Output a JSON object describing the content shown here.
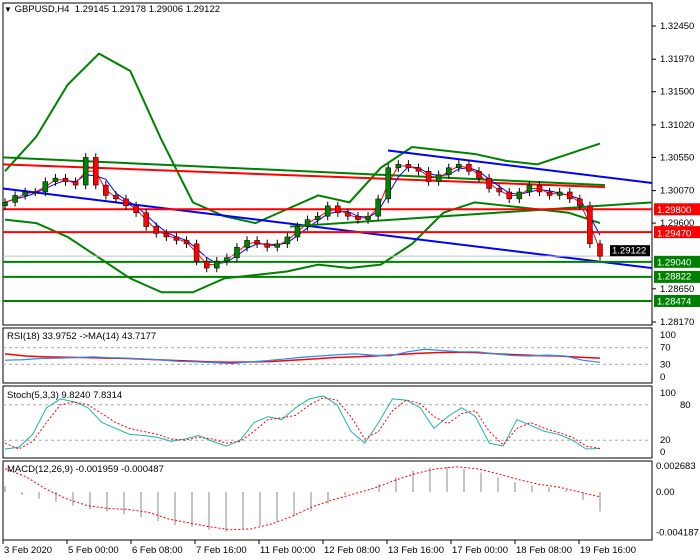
{
  "header": {
    "symbol": "GBPUSD,H4",
    "ohlc": "1.29145 1.29178 1.29006 1.29122"
  },
  "colors": {
    "bull": "#008000",
    "bear": "#ff0000",
    "trendline": "#0000ff",
    "support": "#008000",
    "resistance": "#ff0000",
    "rsi": "#1e90ff",
    "stoch": "#20b2aa"
  },
  "chart_data": [
    {
      "type": "candlestick",
      "title": "GBPUSD,H4",
      "price_ticks": [
        "1.32450",
        "1.31970",
        "1.31500",
        "1.31020",
        "1.30550",
        "1.30070",
        "1.29600",
        "1.28650",
        "1.28170"
      ],
      "ylim": [
        1.2817,
        1.3245
      ],
      "last_price": "1.29122",
      "time_ticks": [
        "3 Feb 2020",
        "5 Feb 00:00",
        "6 Feb 08:00",
        "7 Feb 16:00",
        "11 Feb 00:00",
        "12 Feb 08:00",
        "13 Feb 16:00",
        "17 Feb 00:00",
        "18 Feb 08:00",
        "19 Feb 16:00"
      ],
      "closes": [
        1.299,
        1.3,
        1.3005,
        1.3005,
        1.302,
        1.3025,
        1.302,
        1.3015,
        1.3055,
        1.3015,
        1.3,
        1.2995,
        1.2985,
        1.2975,
        1.2955,
        1.2945,
        1.294,
        1.2935,
        1.293,
        1.2905,
        1.2895,
        1.2905,
        1.291,
        1.2925,
        1.2935,
        1.293,
        1.2925,
        1.293,
        1.294,
        1.2955,
        1.2965,
        1.297,
        1.2985,
        1.2975,
        1.297,
        1.2965,
        1.297,
        1.2995,
        1.304,
        1.3045,
        1.304,
        1.3035,
        1.302,
        1.303,
        1.304,
        1.3045,
        1.3035,
        1.3025,
        1.301,
        1.3005,
        1.2995,
        1.3005,
        1.3015,
        1.3005,
        1.3,
        1.3005,
        1.2995,
        1.2985,
        1.293,
        1.29122
      ],
      "bollinger_upper": [
        1.3035,
        1.3085,
        1.316,
        1.3205,
        1.318,
        1.308,
        1.299,
        1.297,
        1.296,
        1.298,
        1.3,
        1.299,
        1.304,
        1.307,
        1.3065,
        1.306,
        1.305,
        1.3045,
        1.306,
        1.3075
      ],
      "bollinger_lower": [
        1.2965,
        1.296,
        1.294,
        1.291,
        1.288,
        1.286,
        1.286,
        1.288,
        1.2885,
        1.289,
        1.29,
        1.2895,
        1.29,
        1.293,
        1.2975,
        1.299,
        1.2985,
        1.298,
        1.2975,
        1.296
      ],
      "long_ma_red": [
        1.3045,
        1.3012
      ],
      "long_ma_green": [
        1.3055,
        1.3015
      ],
      "levels": [
        {
          "price": "1.29800",
          "kind": "resistance"
        },
        {
          "price": "1.29470",
          "kind": "resistance"
        },
        {
          "price": "1.29040",
          "kind": "support"
        },
        {
          "price": "1.28822",
          "kind": "support"
        },
        {
          "price": "1.28474",
          "kind": "support"
        }
      ]
    },
    {
      "type": "line",
      "title": "RSI(18) 33.9752  ->MA(14) 43.7177",
      "ticks": [
        "100",
        "70",
        "30",
        "0"
      ],
      "ylim": [
        0,
        100
      ],
      "rsi": [
        40,
        41,
        44,
        45,
        46,
        48,
        46,
        45,
        43,
        40,
        37,
        36,
        34,
        32,
        36,
        39,
        43,
        47,
        50,
        53,
        55,
        52,
        50,
        60,
        66,
        63,
        60,
        60,
        55,
        51,
        50,
        52,
        50,
        40,
        35
      ],
      "ma": [
        55,
        50,
        48,
        47,
        46,
        45,
        44,
        42,
        40,
        38,
        36,
        35,
        36,
        37,
        40,
        43,
        46,
        48,
        50,
        53,
        56,
        58,
        59,
        58,
        55,
        53,
        51,
        50,
        47,
        45
      ]
    },
    {
      "type": "line",
      "title": "Stoch(5,3,3) 9.8240 7.8314",
      "ticks": [
        "100",
        "80",
        "20",
        "0"
      ],
      "ylim": [
        0,
        100
      ],
      "main": [
        5,
        8,
        30,
        75,
        90,
        85,
        75,
        50,
        40,
        30,
        28,
        25,
        18,
        22,
        28,
        18,
        10,
        20,
        50,
        60,
        55,
        75,
        90,
        95,
        80,
        35,
        15,
        50,
        90,
        88,
        75,
        40,
        60,
        75,
        60,
        15,
        10,
        55,
        45,
        35,
        30,
        20,
        5,
        6
      ],
      "signal": [
        15,
        5,
        18,
        50,
        80,
        85,
        80,
        65,
        50,
        40,
        35,
        30,
        22,
        20,
        25,
        22,
        15,
        18,
        35,
        55,
        58,
        62,
        80,
        92,
        88,
        60,
        22,
        35,
        70,
        88,
        82,
        60,
        48,
        65,
        70,
        35,
        12,
        40,
        50,
        40,
        33,
        25,
        10,
        6
      ]
    },
    {
      "type": "bar",
      "title": "MACD(12,26,9) -0.001959 -0.000487",
      "ticks": [
        "0.002683",
        "0.00",
        "-0.004187"
      ],
      "ylim": [
        -0.004187,
        0.002683
      ],
      "histogram": [
        0.0006,
        -0.0003,
        -0.0007,
        -0.001,
        -0.0014,
        -0.0018,
        -0.002,
        -0.0023,
        -0.0026,
        -0.003,
        -0.0034,
        -0.0036,
        -0.0039,
        -0.0041,
        -0.0038,
        -0.0035,
        -0.003,
        -0.0025,
        -0.002,
        -0.0012,
        -0.0003,
        0,
        0.0008,
        0.0015,
        0.0022,
        0.0025,
        0.0026,
        0.0024,
        0.002,
        0.0015,
        0.001,
        0.0007,
        0.0005,
        0.0002,
        -0.0008,
        -0.002
      ],
      "signal": [
        0.0024,
        0.0016,
        0.0003,
        -0.0007,
        -0.0014,
        -0.0017,
        -0.0018,
        -0.0021,
        -0.0028,
        -0.0032,
        -0.0036,
        -0.0039,
        -0.0038,
        -0.0033,
        -0.0025,
        -0.0015,
        -0.0008,
        -0.0002,
        0.0004,
        0.0012,
        0.0019,
        0.0024,
        0.0026,
        0.0024,
        0.0019,
        0.0013,
        0.0008,
        0.0005,
        0,
        -0.0005
      ]
    }
  ]
}
